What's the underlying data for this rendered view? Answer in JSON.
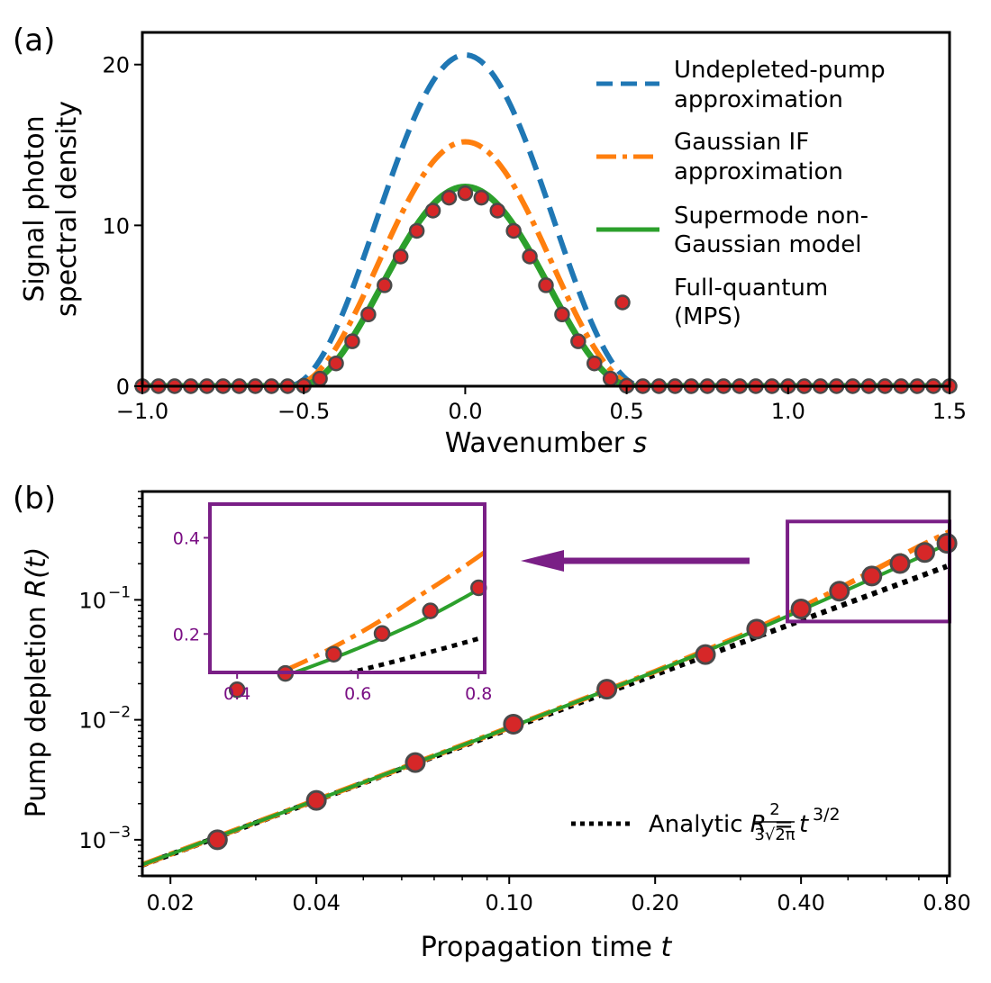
{
  "colors": {
    "undepleted": "#1f77b4",
    "gaussian_if": "#ff7f0e",
    "supermode": "#2ca02c",
    "mps_fill": "#d62728",
    "mps_edge": "#4a4a4a",
    "analytic": "#000000",
    "inset": "#7a1f86"
  },
  "chart_data": [
    {
      "type": "line",
      "panel_label": "(a)",
      "xlabel_text": "Wavenumber ",
      "xlabel_var": "s",
      "ylabel_line1": "Signal photon",
      "ylabel_line2": "spectral density",
      "xlim": [
        -1.0,
        1.5
      ],
      "ylim": [
        0,
        22
      ],
      "x_ticks": [
        -1.0,
        -0.5,
        0.0,
        0.5,
        1.0,
        1.5
      ],
      "x_tick_labels": [
        "−1.0",
        "−0.5",
        "0.0",
        "0.5",
        "1.0",
        "1.5"
      ],
      "y_ticks": [
        0,
        10,
        20
      ],
      "y_tick_labels": [
        "0",
        "10",
        "20"
      ],
      "grid": false,
      "legend_placement": "upper-right",
      "legend": [
        {
          "line1": "Undepleted-pump",
          "line2": "approximation",
          "style": "dashed",
          "color_key": "undepleted"
        },
        {
          "line1": "Gaussian IF",
          "line2": "approximation",
          "style": "dashdot",
          "color_key": "gaussian_if"
        },
        {
          "line1": "Supermode non-",
          "line2": "Gaussian model",
          "style": "solid",
          "color_key": "supermode"
        },
        {
          "line1": "Full-quantum",
          "line2": "(MPS)",
          "style": "marker",
          "color_key": "mps_fill"
        }
      ],
      "series": [
        {
          "key": "undepleted",
          "style": "dashed",
          "peak": 20.6,
          "width": 0.55
        },
        {
          "key": "gaussian_if",
          "style": "dashdot",
          "peak": 15.2,
          "width": 0.54
        },
        {
          "key": "supermode",
          "style": "solid",
          "peak": 12.4,
          "width": 0.52
        },
        {
          "key": "mps",
          "style": "marker",
          "peak": 12.0,
          "width": 0.515,
          "x_step": 0.05,
          "x_range": [
            -1.0,
            1.5
          ]
        }
      ]
    },
    {
      "type": "line",
      "panel_label": "(b)",
      "xlabel_text": "Propagation time ",
      "xlabel_var": "t",
      "ylabel_text": "Pump depletion ",
      "ylabel_var": "R(t)",
      "x_scale": "log",
      "y_scale": "log",
      "xlim": [
        0.0175,
        0.81
      ],
      "ylim": [
        0.0005,
        0.8
      ],
      "x_ticks": [
        0.02,
        0.04,
        0.1,
        0.2,
        0.4,
        0.8
      ],
      "x_tick_labels": [
        "0.02",
        "0.04",
        "0.10",
        "0.20",
        "0.40",
        "0.80"
      ],
      "y_ticks": [
        0.001,
        0.01,
        0.1
      ],
      "y_tick_labels": [
        [
          "10",
          "−3"
        ],
        [
          "10",
          "−2"
        ],
        [
          "10",
          "−1"
        ]
      ],
      "grid": false,
      "legend_placement": "lower-right",
      "legend": {
        "label_prefix": "Analytic ",
        "var": "R",
        "equals": " = ",
        "frac_num": "2",
        "frac_den": "3√2π",
        "tvar": "t",
        "exponent": "3/2"
      },
      "analytic_coefficient": 0.266,
      "supermode_points": {
        "t": [
          0.0175,
          0.05,
          0.1,
          0.2,
          0.3,
          0.4,
          0.5,
          0.6,
          0.7,
          0.81
        ],
        "R": [
          0.00062,
          0.003,
          0.0086,
          0.0252,
          0.049,
          0.082,
          0.122,
          0.17,
          0.225,
          0.3
        ]
      },
      "gaussian_if_points": {
        "t": [
          0.0175,
          0.05,
          0.1,
          0.2,
          0.3,
          0.4,
          0.5,
          0.6,
          0.7,
          0.81
        ],
        "R": [
          0.00062,
          0.003,
          0.0086,
          0.0253,
          0.05,
          0.086,
          0.136,
          0.2,
          0.278,
          0.37
        ]
      },
      "mps_points": {
        "t": [
          0.025,
          0.04,
          0.064,
          0.102,
          0.159,
          0.254,
          0.324,
          0.4,
          0.48,
          0.56,
          0.64,
          0.72,
          0.8
        ],
        "R": [
          0.001,
          0.00213,
          0.0044,
          0.0092,
          0.018,
          0.035,
          0.057,
          0.084,
          0.118,
          0.158,
          0.201,
          0.248,
          0.296
        ]
      },
      "zoom_box": {
        "t_range": [
          0.375,
          0.81
        ],
        "R_range": [
          0.066,
          0.45
        ]
      },
      "inset": {
        "xlim": [
          0.355,
          0.81
        ],
        "ylim": [
          0.12,
          0.47
        ],
        "x_ticks": [
          0.4,
          0.6,
          0.8
        ],
        "x_tick_labels": [
          "0.4",
          "0.6",
          "0.8"
        ],
        "y_ticks": [
          0.2,
          0.4
        ],
        "y_tick_labels": [
          "0.2",
          "0.4"
        ]
      }
    }
  ]
}
